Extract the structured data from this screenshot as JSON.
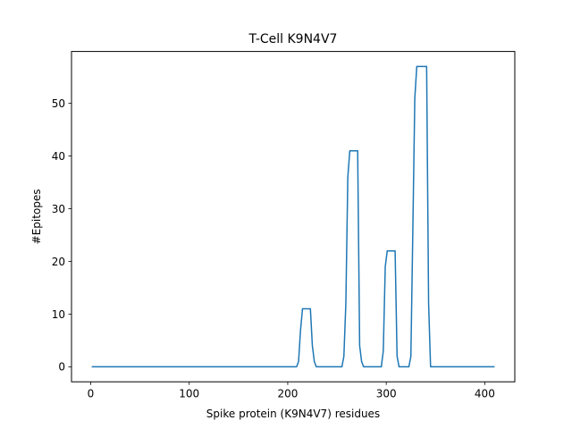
{
  "chart_data": {
    "type": "line",
    "title": "T-Cell K9N4V7",
    "xlabel": "Spike protein (K9N4V7) residues",
    "ylabel": "#Epitopes",
    "xlim": [
      -19.5,
      430.5
    ],
    "ylim": [
      -2.85,
      59.85
    ],
    "xticks": [
      0,
      100,
      200,
      300,
      400
    ],
    "yticks": [
      0,
      10,
      20,
      30,
      40,
      50
    ],
    "grid": false,
    "series": [
      {
        "color": "#1f77b4",
        "x": [
          1,
          209,
          211,
          213,
          215,
          223,
          225,
          227,
          229,
          255,
          257,
          259,
          261,
          263,
          271,
          273,
          275,
          277,
          295,
          297,
          299,
          301,
          303,
          309,
          311,
          313,
          315,
          323,
          325,
          327,
          329,
          331,
          333,
          341,
          343,
          345,
          347,
          410
        ],
        "y": [
          0,
          0,
          1,
          7,
          11,
          11,
          4,
          1,
          0,
          0,
          2,
          12,
          36,
          41,
          41,
          4,
          1,
          0,
          0,
          3,
          19,
          22,
          22,
          22,
          2,
          0,
          0,
          0,
          2,
          26,
          51,
          57,
          57,
          57,
          12,
          0,
          0,
          0
        ]
      }
    ]
  }
}
